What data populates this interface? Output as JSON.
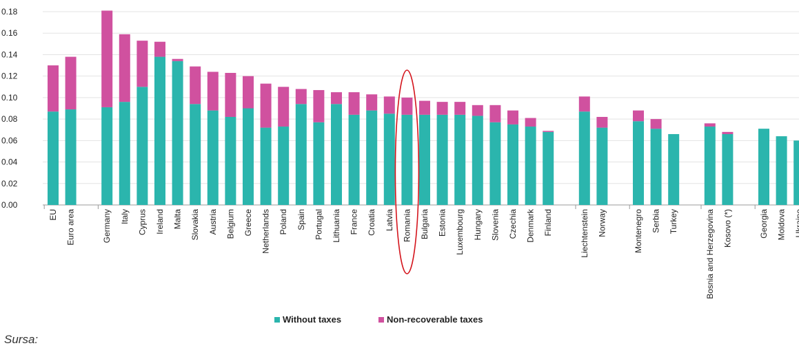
{
  "chart_data": {
    "type": "bar",
    "stacked": true,
    "categories": [
      "EU",
      "Euro area",
      "Germany",
      "Italy",
      "Cyprus",
      "Ireland",
      "Malta",
      "Slovakia",
      "Austria",
      "Belgium",
      "Greece",
      "Netherlands",
      "Poland",
      "Spain",
      "Portugal",
      "Lithuania",
      "France",
      "Croatia",
      "Latvia",
      "Romania",
      "Bulgaria",
      "Estonia",
      "Luxembourg",
      "Hungary",
      "Slovenia",
      "Czechia",
      "Denmark",
      "Finland",
      "Liechtenstein",
      "Norway",
      "Montenegro",
      "Serbia",
      "Turkey",
      "Bosnia and Herzegovina",
      "Kosovo (*)",
      "Georgia",
      "Moldova",
      "Ukraine"
    ],
    "groups": [
      2,
      26,
      2,
      3,
      2,
      3
    ],
    "series": [
      {
        "name": "Without taxes",
        "color": "#2bb5ad",
        "values": [
          0.087,
          0.089,
          0.091,
          0.096,
          0.11,
          0.138,
          0.134,
          0.094,
          0.088,
          0.082,
          0.09,
          0.072,
          0.073,
          0.094,
          0.077,
          0.094,
          0.084,
          0.088,
          0.085,
          0.084,
          0.084,
          0.084,
          0.084,
          0.083,
          0.077,
          0.075,
          0.073,
          0.068,
          0.087,
          0.072,
          0.078,
          0.071,
          0.066,
          0.073,
          0.066,
          0.071,
          0.064,
          0.06
        ]
      },
      {
        "name": "Non-recoverable taxes",
        "color": "#d0519f",
        "values": [
          0.043,
          0.049,
          0.09,
          0.063,
          0.043,
          0.014,
          0.002,
          0.035,
          0.036,
          0.041,
          0.03,
          0.041,
          0.037,
          0.014,
          0.03,
          0.011,
          0.021,
          0.015,
          0.016,
          0.016,
          0.013,
          0.012,
          0.012,
          0.01,
          0.016,
          0.013,
          0.008,
          0.001,
          0.014,
          0.01,
          0.01,
          0.009,
          0.0,
          0.003,
          0.002,
          0.0,
          0.0,
          0.0
        ]
      }
    ],
    "yticks": [
      "0.00",
      "0.02",
      "0.04",
      "0.06",
      "0.08",
      "0.10",
      "0.12",
      "0.14",
      "0.16",
      "0.18"
    ],
    "ylim": [
      0,
      0.18
    ],
    "grid": true,
    "legend_position": "bottom",
    "highlight": "Romania"
  },
  "legend": [
    {
      "label": "Without taxes",
      "color": "#2bb5ad"
    },
    {
      "label": "Non-recoverable taxes",
      "color": "#d0519f"
    }
  ],
  "source_note": "Sursa:"
}
